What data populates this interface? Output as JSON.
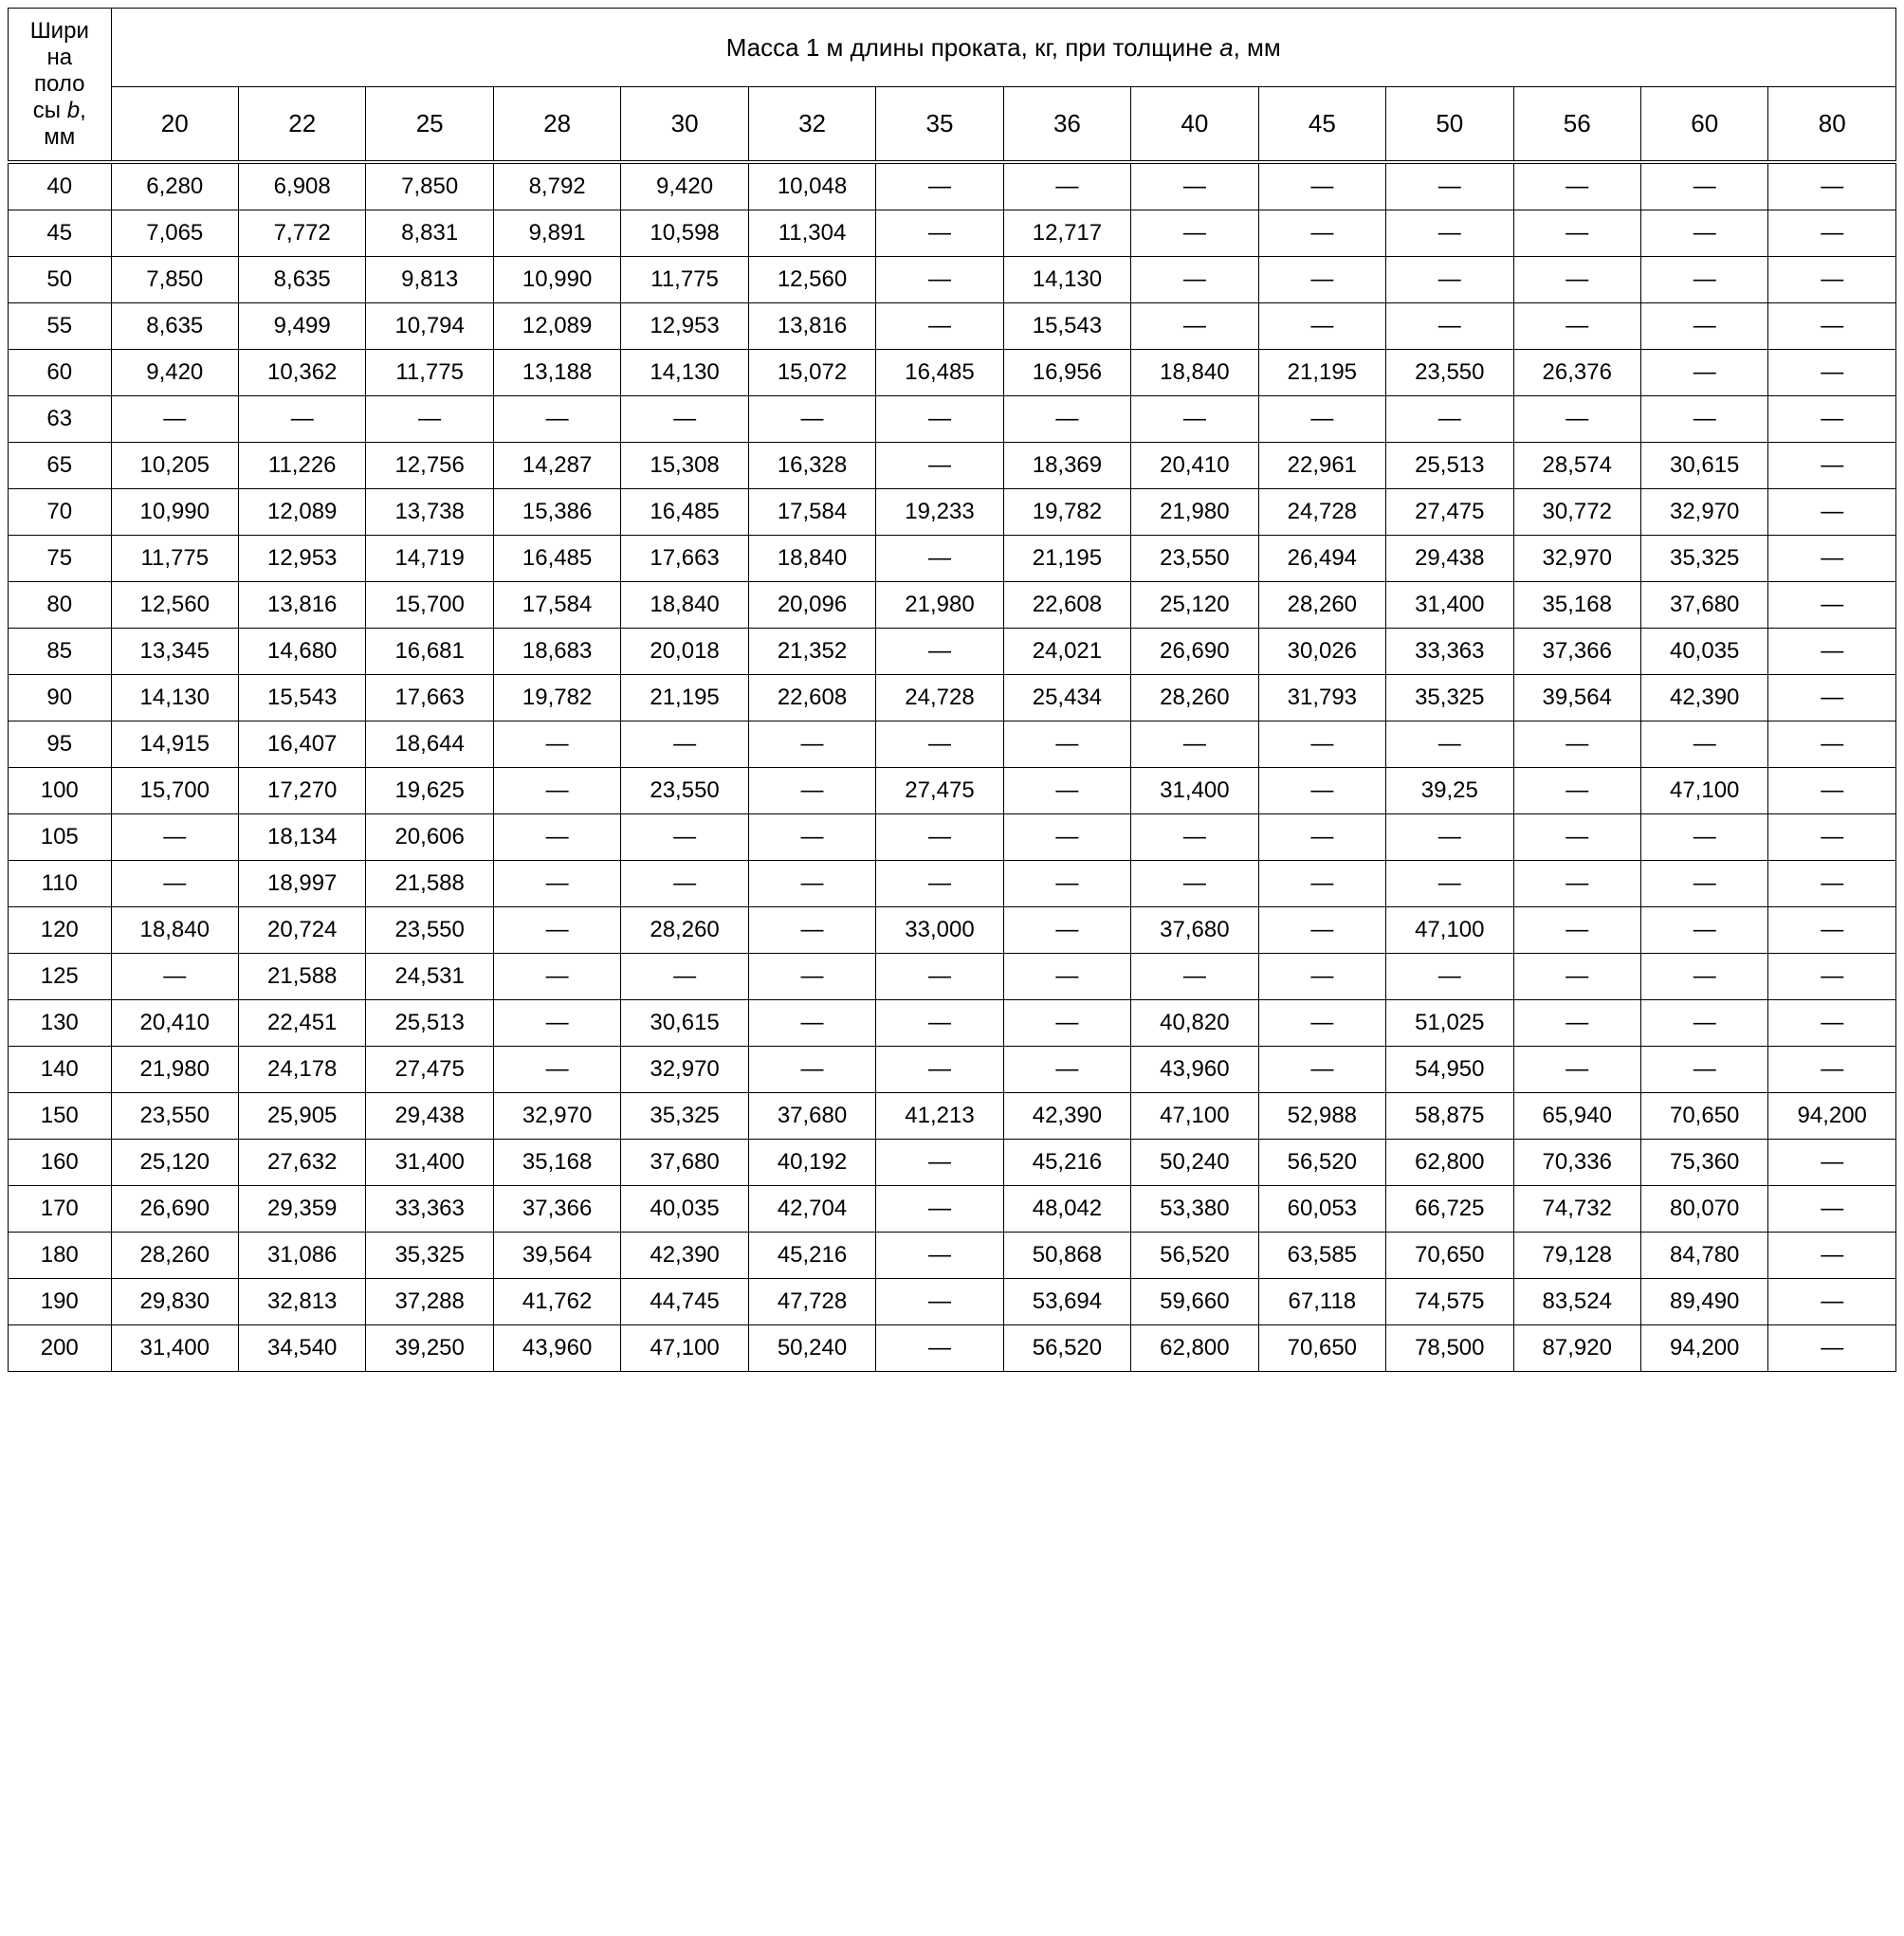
{
  "table": {
    "title": "Масса 1 м длины проката, кг, при толщине a, мм",
    "row_header_lines": [
      "Шири",
      "на",
      "поло",
      "сы b,",
      "мм"
    ],
    "thickness_columns": [
      "20",
      "22",
      "25",
      "28",
      "30",
      "32",
      "35",
      "36",
      "40",
      "45",
      "50",
      "56",
      "60",
      "80"
    ],
    "dash": "—",
    "rows": [
      {
        "w": "40",
        "v": [
          "6,280",
          "6,908",
          "7,850",
          "8,792",
          "9,420",
          "10,048",
          "—",
          "—",
          "—",
          "—",
          "—",
          "—",
          "—",
          "—"
        ]
      },
      {
        "w": "45",
        "v": [
          "7,065",
          "7,772",
          "8,831",
          "9,891",
          "10,598",
          "11,304",
          "—",
          "12,717",
          "—",
          "—",
          "—",
          "—",
          "—",
          "—"
        ]
      },
      {
        "w": "50",
        "v": [
          "7,850",
          "8,635",
          "9,813",
          "10,990",
          "11,775",
          "12,560",
          "—",
          "14,130",
          "—",
          "—",
          "—",
          "—",
          "—",
          "—"
        ]
      },
      {
        "w": "55",
        "v": [
          "8,635",
          "9,499",
          "10,794",
          "12,089",
          "12,953",
          "13,816",
          "—",
          "15,543",
          "—",
          "—",
          "—",
          "—",
          "—",
          "—"
        ]
      },
      {
        "w": "60",
        "v": [
          "9,420",
          "10,362",
          "11,775",
          "13,188",
          "14,130",
          "15,072",
          "16,485",
          "16,956",
          "18,840",
          "21,195",
          "23,550",
          "26,376",
          "—",
          "—"
        ]
      },
      {
        "w": "63",
        "v": [
          "—",
          "—",
          "—",
          "—",
          "—",
          "—",
          "—",
          "—",
          "—",
          "—",
          "—",
          "—",
          "—",
          "—"
        ]
      },
      {
        "w": "65",
        "v": [
          "10,205",
          "11,226",
          "12,756",
          "14,287",
          "15,308",
          "16,328",
          "—",
          "18,369",
          "20,410",
          "22,961",
          "25,513",
          "28,574",
          "30,615",
          "—"
        ]
      },
      {
        "w": "70",
        "v": [
          "10,990",
          "12,089",
          "13,738",
          "15,386",
          "16,485",
          "17,584",
          "19,233",
          "19,782",
          "21,980",
          "24,728",
          "27,475",
          "30,772",
          "32,970",
          "—"
        ]
      },
      {
        "w": "75",
        "v": [
          "11,775",
          "12,953",
          "14,719",
          "16,485",
          "17,663",
          "18,840",
          "—",
          "21,195",
          "23,550",
          "26,494",
          "29,438",
          "32,970",
          "35,325",
          "—"
        ]
      },
      {
        "w": "80",
        "v": [
          "12,560",
          "13,816",
          "15,700",
          "17,584",
          "18,840",
          "20,096",
          "21,980",
          "22,608",
          "25,120",
          "28,260",
          "31,400",
          "35,168",
          "37,680",
          "—"
        ]
      },
      {
        "w": "85",
        "v": [
          "13,345",
          "14,680",
          "16,681",
          "18,683",
          "20,018",
          "21,352",
          "—",
          "24,021",
          "26,690",
          "30,026",
          "33,363",
          "37,366",
          "40,035",
          "—"
        ]
      },
      {
        "w": "90",
        "v": [
          "14,130",
          "15,543",
          "17,663",
          "19,782",
          "21,195",
          "22,608",
          "24,728",
          "25,434",
          "28,260",
          "31,793",
          "35,325",
          "39,564",
          "42,390",
          "—"
        ]
      },
      {
        "w": "95",
        "v": [
          "14,915",
          "16,407",
          "18,644",
          "—",
          "—",
          "—",
          "—",
          "—",
          "—",
          "—",
          "—",
          "—",
          "—",
          "—"
        ]
      },
      {
        "w": "100",
        "v": [
          "15,700",
          "17,270",
          "19,625",
          "—",
          "23,550",
          "—",
          "27,475",
          "—",
          "31,400",
          "—",
          "39,25",
          "—",
          "47,100",
          "—"
        ]
      },
      {
        "w": "105",
        "v": [
          "—",
          "18,134",
          "20,606",
          "—",
          "—",
          "—",
          "—",
          "—",
          "—",
          "—",
          "—",
          "—",
          "—",
          "—"
        ]
      },
      {
        "w": "110",
        "v": [
          "—",
          "18,997",
          "21,588",
          "—",
          "—",
          "—",
          "—",
          "—",
          "—",
          "—",
          "—",
          "—",
          "—",
          "—"
        ]
      },
      {
        "w": "120",
        "v": [
          "18,840",
          "20,724",
          "23,550",
          "—",
          "28,260",
          "—",
          "33,000",
          "—",
          "37,680",
          "—",
          "47,100",
          "—",
          "—",
          "—"
        ]
      },
      {
        "w": "125",
        "v": [
          "—",
          "21,588",
          "24,531",
          "—",
          "—",
          "—",
          "—",
          "—",
          "—",
          "—",
          "—",
          "—",
          "—",
          "—"
        ]
      },
      {
        "w": "130",
        "v": [
          "20,410",
          "22,451",
          "25,513",
          "—",
          "30,615",
          "—",
          "—",
          "—",
          "40,820",
          "—",
          "51,025",
          "—",
          "—",
          "—"
        ]
      },
      {
        "w": "140",
        "v": [
          "21,980",
          "24,178",
          "27,475",
          "—",
          "32,970",
          "—",
          "—",
          "—",
          "43,960",
          "—",
          "54,950",
          "—",
          "—",
          "—"
        ]
      },
      {
        "w": "150",
        "v": [
          "23,550",
          "25,905",
          "29,438",
          "32,970",
          "35,325",
          "37,680",
          "41,213",
          "42,390",
          "47,100",
          "52,988",
          "58,875",
          "65,940",
          "70,650",
          "94,200"
        ]
      },
      {
        "w": "160",
        "v": [
          "25,120",
          "27,632",
          "31,400",
          "35,168",
          "37,680",
          "40,192",
          "—",
          "45,216",
          "50,240",
          "56,520",
          "62,800",
          "70,336",
          "75,360",
          "—"
        ]
      },
      {
        "w": "170",
        "v": [
          "26,690",
          "29,359",
          "33,363",
          "37,366",
          "40,035",
          "42,704",
          "—",
          "48,042",
          "53,380",
          "60,053",
          "66,725",
          "74,732",
          "80,070",
          "—"
        ]
      },
      {
        "w": "180",
        "v": [
          "28,260",
          "31,086",
          "35,325",
          "39,564",
          "42,390",
          "45,216",
          "—",
          "50,868",
          "56,520",
          "63,585",
          "70,650",
          "79,128",
          "84,780",
          "—"
        ]
      },
      {
        "w": "190",
        "v": [
          "29,830",
          "32,813",
          "37,288",
          "41,762",
          "44,745",
          "47,728",
          "—",
          "53,694",
          "59,660",
          "67,118",
          "74,575",
          "83,524",
          "89,490",
          "—"
        ]
      },
      {
        "w": "200",
        "v": [
          "31,400",
          "34,540",
          "39,250",
          "43,960",
          "47,100",
          "50,240",
          "—",
          "56,520",
          "62,800",
          "70,650",
          "78,500",
          "87,920",
          "94,200",
          "—"
        ]
      }
    ]
  },
  "style": {
    "font_family": "Arial",
    "cell_fontsize": 24,
    "title_fontsize": 26,
    "border_color": "#000000",
    "background_color": "#ffffff"
  }
}
